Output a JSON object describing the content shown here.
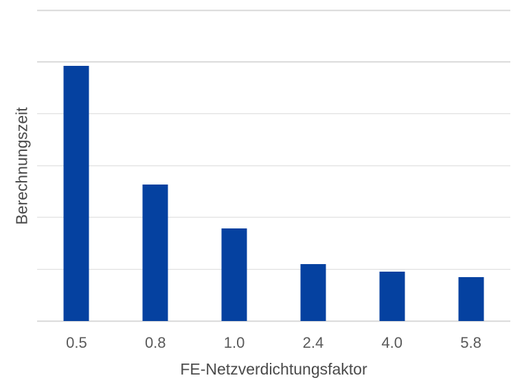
{
  "chart_data": {
    "type": "bar",
    "title": "",
    "categories": [
      "0.5",
      "0.8",
      "1.0",
      "2.4",
      "4.0",
      "5.8"
    ],
    "values": [
      4.93,
      2.63,
      1.79,
      1.1,
      0.95,
      0.85
    ],
    "xlabel": "FE-Netzverdichtungsfaktor",
    "ylabel": "Berechnungszeit",
    "ylim": [
      0,
      6
    ],
    "gridline_interval": 1,
    "grid": "horizontal-only",
    "legend": "none",
    "y_tick_labels_visible": false,
    "colors": {
      "bar": "#0541A0",
      "gridline": "#D9D9D9",
      "tick_label": "#595959",
      "axis_title": "#4A4A4A",
      "background": "#FFFFFF"
    }
  }
}
